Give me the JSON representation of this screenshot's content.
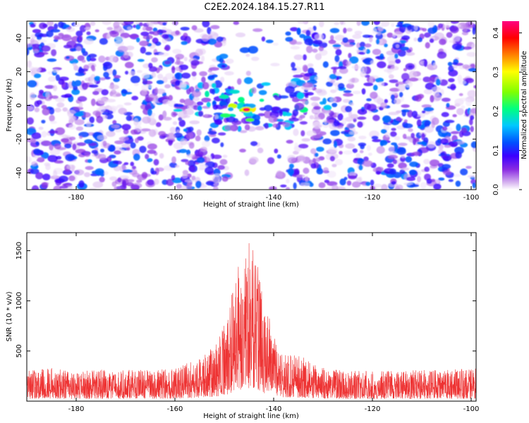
{
  "title": "C2E2.2024.184.15.27.R11",
  "chart_data": [
    {
      "type": "heatmap",
      "xlabel": "Height of straight line (km)",
      "ylabel": "Frequency (Hz)",
      "xlim": [
        -190,
        -99
      ],
      "ylim": [
        -50,
        50
      ],
      "xticks": [
        -180,
        -160,
        -140,
        -120,
        -100
      ],
      "yticks": [
        -40,
        -20,
        0,
        20,
        40
      ],
      "colorbar": {
        "label": "Normalized spectral amplitude",
        "range": [
          0.0,
          0.43
        ],
        "ticks": [
          "0.0",
          "0.1",
          "0.2",
          "0.3",
          "0.4"
        ],
        "colors": [
          "#ffffff",
          "#d9b8f0",
          "#8a2be2",
          "#3b00ff",
          "#0050ff",
          "#00c8ff",
          "#00ff80",
          "#80ff00",
          "#ffff00",
          "#ff8000",
          "#ff0000",
          "#ff0080"
        ]
      },
      "features": {
        "peak": {
          "x": -145.5,
          "freq": -2.5,
          "amplitude": 0.43
        },
        "high_region_x": [
          -156,
          -133
        ],
        "high_region_freq": [
          -12,
          10
        ],
        "white_gap_x": [
          -150,
          -137
        ],
        "background_level": 0.08
      },
      "grid": false
    },
    {
      "type": "line",
      "xlabel": "Height of straight line (km)",
      "ylabel": "SNR (10 * v/v)",
      "xlim": [
        -190,
        -99
      ],
      "ylim": [
        0,
        1680
      ],
      "xticks": [
        -180,
        -160,
        -140,
        -120,
        -100
      ],
      "yticks": [
        500,
        1000,
        1500
      ],
      "color": "#ee3333",
      "series": [
        {
          "x": [
            -190,
            -185,
            -180,
            -175,
            -170,
            -165,
            -160,
            -157,
            -155,
            -153,
            -151,
            -149,
            -147.5,
            -146.5,
            -145.5,
            -144.5,
            -143.5,
            -142.5,
            -141.5,
            -140.5,
            -139.5,
            -138,
            -136,
            -134,
            -132,
            -130,
            -128,
            -125,
            -120,
            -115,
            -110,
            -105,
            -99
          ],
          "values": [
            300,
            330,
            290,
            320,
            310,
            310,
            330,
            400,
            440,
            500,
            640,
            900,
            1540,
            1230,
            1520,
            1680,
            1580,
            1200,
            900,
            780,
            600,
            500,
            480,
            440,
            380,
            330,
            320,
            300,
            310,
            300,
            310,
            310,
            330
          ]
        }
      ],
      "grid": false
    }
  ]
}
